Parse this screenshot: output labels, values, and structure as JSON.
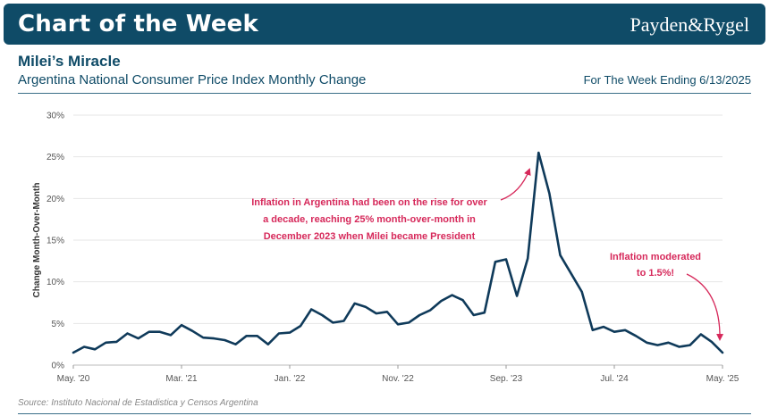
{
  "header": {
    "title": "Chart of the Week",
    "brand": "Payden&Rygel"
  },
  "subtitle": {
    "main": "Milei’s Miracle",
    "sub": "Argentina National Consumer Price Index Monthly Change",
    "week_ending": "For The Week Ending 6/13/2025"
  },
  "source": "Source: Instituto Nacional de Estadistica y Censos Argentina",
  "colors": {
    "brand": "#0f4b67",
    "line": "#0f3a5a",
    "annotation": "#d6285a"
  },
  "chart_data": {
    "type": "line",
    "ylabel": "Change Month-Over-Month",
    "xlabel": "",
    "ylim": [
      0,
      30
    ],
    "yticks": [
      0,
      5,
      10,
      15,
      20,
      25,
      30
    ],
    "ytick_labels": [
      "0%",
      "5%",
      "10%",
      "15%",
      "20%",
      "25%",
      "30%"
    ],
    "xtick_labels": [
      "May. '20",
      "Mar. '21",
      "Jan. '22",
      "Nov. '22",
      "Sep. '23",
      "Jul. '24",
      "May. '25"
    ],
    "xtick_indices": [
      0,
      10,
      20,
      30,
      40,
      50,
      60
    ],
    "grid": "horizontal",
    "series": [
      {
        "values": [
          1.5,
          2.2,
          1.9,
          2.7,
          2.8,
          3.8,
          3.2,
          4.0,
          4.0,
          3.6,
          4.8,
          4.1,
          3.3,
          3.2,
          3.0,
          2.5,
          3.5,
          3.5,
          2.5,
          3.8,
          3.9,
          4.7,
          6.7,
          6.0,
          5.1,
          5.3,
          7.4,
          7.0,
          6.2,
          6.4,
          4.9,
          5.1,
          6.0,
          6.6,
          7.7,
          8.4,
          7.8,
          6.0,
          6.3,
          12.4,
          12.7,
          8.3,
          12.8,
          25.5,
          20.6,
          13.2,
          11.0,
          8.8,
          4.2,
          4.6,
          4.0,
          4.2,
          3.5,
          2.7,
          2.4,
          2.7,
          2.2,
          2.4,
          3.7,
          2.8,
          1.5
        ]
      }
    ],
    "annotations": [
      {
        "lines": [
          "Inflation in Argentina had been on the rise for over",
          "a decade, reaching 25% month-over-month in",
          "December 2023 when Milei became President"
        ]
      },
      {
        "lines": [
          "Inflation moderated",
          "to 1.5%!"
        ]
      }
    ]
  }
}
